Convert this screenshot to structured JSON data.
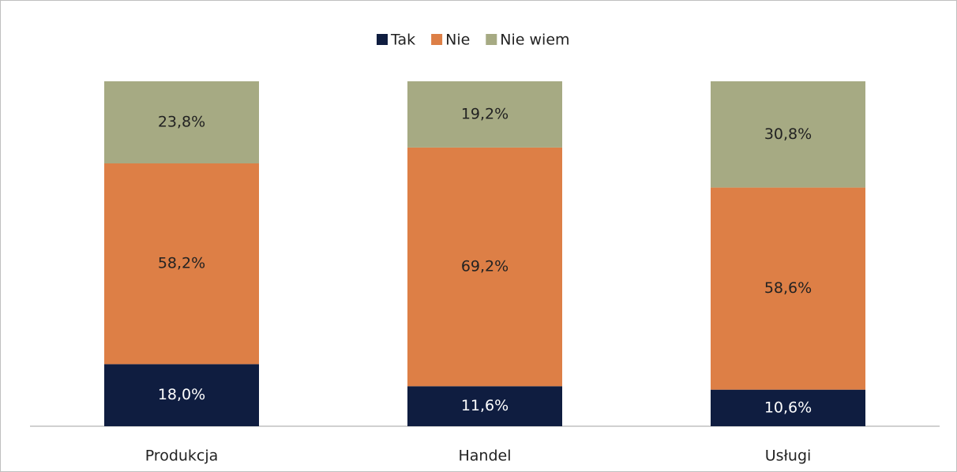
{
  "chart_data": {
    "type": "bar",
    "stacked": true,
    "categories": [
      "Produkcja",
      "Handel",
      "Usługi"
    ],
    "series": [
      {
        "name": "Tak",
        "color": "#0f1d40",
        "values": [
          18.0,
          11.6,
          10.6
        ],
        "value_labels": [
          "18,0%",
          "11,6%",
          "10,6%"
        ]
      },
      {
        "name": "Nie",
        "color": "#dd7f46",
        "values": [
          58.2,
          69.2,
          58.6
        ],
        "value_labels": [
          "58,2%",
          "69,2%",
          "58,6%"
        ]
      },
      {
        "name": "Nie wiem",
        "color": "#a6aa83",
        "values": [
          23.8,
          19.2,
          30.8
        ],
        "value_labels": [
          "23,8%",
          "19,2%",
          "30,8%"
        ]
      }
    ],
    "legend": "top"
  }
}
